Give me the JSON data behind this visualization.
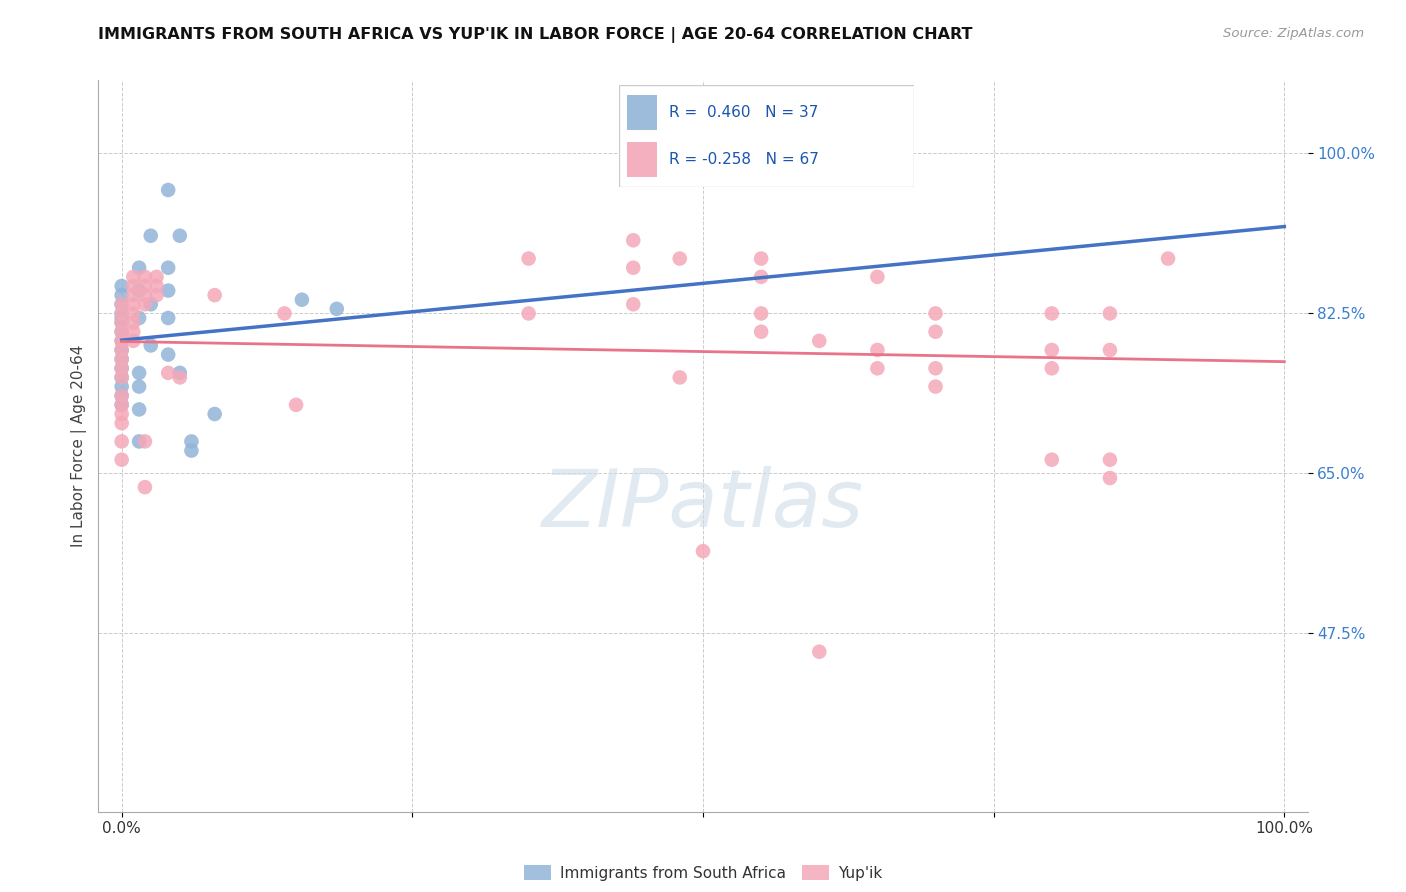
{
  "title": "IMMIGRANTS FROM SOUTH AFRICA VS YUP'IK IN LABOR FORCE | AGE 20-64 CORRELATION CHART",
  "source": "Source: ZipAtlas.com",
  "ylabel": "In Labor Force | Age 20-64",
  "xlim": [
    -0.02,
    1.02
  ],
  "ylim": [
    0.28,
    1.08
  ],
  "xticks": [
    0.0,
    0.25,
    0.5,
    0.75,
    1.0
  ],
  "xticklabels": [
    "0.0%",
    "",
    "",
    "",
    "100.0%"
  ],
  "ytick_positions": [
    0.475,
    0.65,
    0.825,
    1.0
  ],
  "ytick_labels": [
    "47.5%",
    "65.0%",
    "82.5%",
    "100.0%"
  ],
  "blue_R": 0.46,
  "blue_N": 37,
  "pink_R": -0.258,
  "pink_N": 67,
  "blue_color": "#92b4d8",
  "pink_color": "#f4a8b8",
  "blue_line_color": "#4472c4",
  "pink_line_color": "#e8748a",
  "legend_label_blue": "Immigrants from South Africa",
  "legend_label_pink": "Yup'ik",
  "watermark": "ZIPatlas",
  "blue_points": [
    [
      0.0,
      0.825
    ],
    [
      0.0,
      0.855
    ],
    [
      0.0,
      0.82
    ],
    [
      0.0,
      0.835
    ],
    [
      0.0,
      0.805
    ],
    [
      0.0,
      0.815
    ],
    [
      0.0,
      0.795
    ],
    [
      0.0,
      0.775
    ],
    [
      0.0,
      0.845
    ],
    [
      0.0,
      0.785
    ],
    [
      0.0,
      0.765
    ],
    [
      0.0,
      0.745
    ],
    [
      0.0,
      0.755
    ],
    [
      0.0,
      0.735
    ],
    [
      0.0,
      0.725
    ],
    [
      0.015,
      0.82
    ],
    [
      0.015,
      0.85
    ],
    [
      0.015,
      0.875
    ],
    [
      0.015,
      0.76
    ],
    [
      0.015,
      0.745
    ],
    [
      0.015,
      0.72
    ],
    [
      0.015,
      0.685
    ],
    [
      0.025,
      0.91
    ],
    [
      0.025,
      0.835
    ],
    [
      0.025,
      0.79
    ],
    [
      0.04,
      0.96
    ],
    [
      0.04,
      0.875
    ],
    [
      0.04,
      0.85
    ],
    [
      0.04,
      0.82
    ],
    [
      0.04,
      0.78
    ],
    [
      0.05,
      0.91
    ],
    [
      0.05,
      0.76
    ],
    [
      0.06,
      0.685
    ],
    [
      0.06,
      0.675
    ],
    [
      0.08,
      0.715
    ],
    [
      0.155,
      0.84
    ],
    [
      0.185,
      0.83
    ]
  ],
  "pink_points": [
    [
      0.0,
      0.835
    ],
    [
      0.0,
      0.825
    ],
    [
      0.0,
      0.815
    ],
    [
      0.0,
      0.805
    ],
    [
      0.0,
      0.795
    ],
    [
      0.0,
      0.785
    ],
    [
      0.0,
      0.775
    ],
    [
      0.0,
      0.765
    ],
    [
      0.0,
      0.755
    ],
    [
      0.0,
      0.735
    ],
    [
      0.0,
      0.725
    ],
    [
      0.0,
      0.715
    ],
    [
      0.0,
      0.705
    ],
    [
      0.0,
      0.685
    ],
    [
      0.0,
      0.665
    ],
    [
      0.01,
      0.835
    ],
    [
      0.01,
      0.825
    ],
    [
      0.01,
      0.815
    ],
    [
      0.01,
      0.805
    ],
    [
      0.01,
      0.795
    ],
    [
      0.01,
      0.845
    ],
    [
      0.01,
      0.855
    ],
    [
      0.01,
      0.865
    ],
    [
      0.02,
      0.865
    ],
    [
      0.02,
      0.855
    ],
    [
      0.02,
      0.845
    ],
    [
      0.02,
      0.835
    ],
    [
      0.02,
      0.685
    ],
    [
      0.02,
      0.635
    ],
    [
      0.03,
      0.865
    ],
    [
      0.03,
      0.855
    ],
    [
      0.03,
      0.845
    ],
    [
      0.04,
      0.76
    ],
    [
      0.05,
      0.755
    ],
    [
      0.08,
      0.845
    ],
    [
      0.14,
      0.825
    ],
    [
      0.15,
      0.725
    ],
    [
      0.35,
      0.885
    ],
    [
      0.35,
      0.825
    ],
    [
      0.44,
      0.905
    ],
    [
      0.44,
      0.875
    ],
    [
      0.44,
      0.835
    ],
    [
      0.48,
      0.885
    ],
    [
      0.48,
      0.755
    ],
    [
      0.5,
      0.565
    ],
    [
      0.55,
      0.885
    ],
    [
      0.55,
      0.865
    ],
    [
      0.55,
      0.825
    ],
    [
      0.55,
      0.805
    ],
    [
      0.6,
      0.795
    ],
    [
      0.6,
      0.455
    ],
    [
      0.65,
      0.865
    ],
    [
      0.65,
      0.785
    ],
    [
      0.65,
      0.765
    ],
    [
      0.7,
      0.825
    ],
    [
      0.7,
      0.805
    ],
    [
      0.7,
      0.765
    ],
    [
      0.7,
      0.745
    ],
    [
      0.8,
      0.825
    ],
    [
      0.8,
      0.785
    ],
    [
      0.8,
      0.765
    ],
    [
      0.8,
      0.665
    ],
    [
      0.85,
      0.825
    ],
    [
      0.85,
      0.785
    ],
    [
      0.85,
      0.665
    ],
    [
      0.85,
      0.645
    ],
    [
      0.9,
      0.885
    ]
  ],
  "blue_line_x": [
    0.0,
    1.0
  ],
  "blue_line_y_start": 0.775,
  "blue_line_y_end": 0.995,
  "pink_line_x": [
    0.0,
    1.0
  ],
  "pink_line_y_start": 0.805,
  "pink_line_y_end": 0.695
}
